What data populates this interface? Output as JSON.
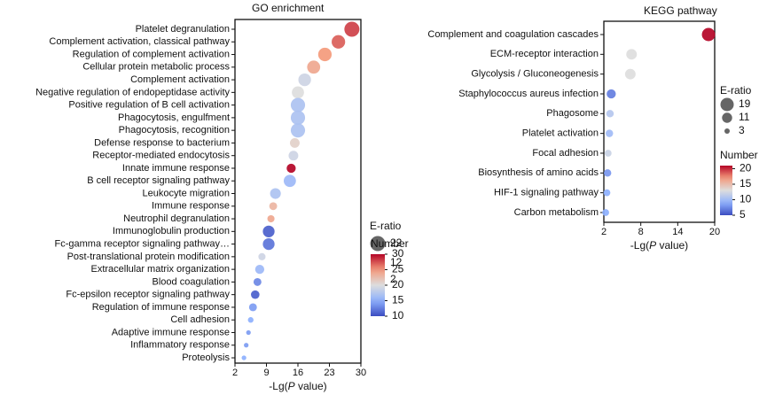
{
  "chart_data": [
    {
      "type": "scatter",
      "title": "GO enrichment",
      "xlabel_prefix": "-Lg(",
      "xlabel_italic": "P",
      "xlabel_suffix": " value)",
      "xlim": [
        2,
        30
      ],
      "xticks": [
        2,
        9,
        16,
        23,
        30
      ],
      "terms": [
        "Platelet degranulation",
        "Complement activation, classical pathway",
        "Regulation of complement activation",
        "Cellular protein metabolic process",
        "Complement activation",
        "Negative regulation of endopeptidase activity",
        "Positive regulation of B cell activation",
        "Phagocytosis, engulfment",
        "Phagocytosis, recognition",
        "Defense response to bacterium",
        "Receptor-mediated endocytosis",
        "Innate immune response",
        "B cell receptor signaling pathway",
        "Leukocyte migration",
        "Immune response",
        "Neutrophil degranulation",
        "Immunoglobulin production",
        "Fc-gamma receptor signaling pathway…",
        "Post-translational protein modification",
        "Extracellular matrix organization",
        "Blood coagulation",
        "Fc-epsilon receptor signaling pathway",
        "Regulation of immune response",
        "Cell adhesion",
        "Adaptive immune response",
        "Inflammatory response",
        "Proteolysis"
      ],
      "x": [
        28.0,
        25.0,
        22.0,
        19.5,
        17.5,
        16.0,
        16.0,
        16.0,
        16.0,
        15.3,
        15.0,
        14.5,
        14.2,
        11.0,
        10.5,
        10.0,
        9.5,
        9.5,
        8.0,
        7.5,
        7.0,
        6.5,
        6.0,
        5.5,
        5.0,
        4.5,
        4.0
      ],
      "e_ratio": [
        22,
        18,
        18,
        17,
        16,
        15,
        20,
        20,
        20,
        10,
        10,
        9,
        15,
        12,
        7,
        6,
        14,
        14,
        6,
        9,
        7,
        8,
        7,
        4,
        3,
        3,
        3
      ],
      "number": [
        28,
        27,
        25,
        24,
        19,
        20,
        17,
        17,
        17,
        21,
        19,
        30,
        16,
        17,
        23,
        24,
        11,
        12,
        19,
        16,
        13,
        11,
        14,
        15,
        14,
        14,
        15
      ],
      "size_legend": {
        "title": "E-ratio",
        "values": [
          22,
          12,
          2
        ]
      },
      "color_legend": {
        "title": "Number",
        "min": 10,
        "max": 30,
        "ticks": [
          30,
          25,
          20,
          15,
          10
        ]
      }
    },
    {
      "type": "scatter",
      "title": "KEGG pathway",
      "xlabel_prefix": "-Lg(",
      "xlabel_italic": "P",
      "xlabel_suffix": " value)",
      "xlim": [
        2,
        20
      ],
      "xticks": [
        2,
        8,
        14,
        20
      ],
      "terms": [
        "Complement and coagulation cascades",
        "ECM-receptor interaction",
        "Glycolysis / Gluconeogenesis",
        "Staphylococcus aureus infection",
        "Phagosome",
        "Platelet activation",
        "Focal adhesion",
        "Biosynthesis of amino acids",
        "HIF-1 signaling pathway",
        "Carbon metabolism"
      ],
      "x": [
        19.0,
        6.5,
        6.3,
        3.2,
        3.0,
        2.9,
        2.7,
        2.6,
        2.5,
        2.3
      ],
      "e_ratio": [
        19,
        12,
        12,
        9,
        6,
        6,
        5,
        6,
        5,
        5
      ],
      "number": [
        21,
        13,
        13,
        7,
        11,
        10,
        12,
        8,
        9,
        9
      ],
      "size_legend": {
        "title": "E-ratio",
        "values": [
          19,
          11,
          3
        ]
      },
      "color_legend": {
        "title": "Number",
        "min": 5,
        "max": 21,
        "ticks": [
          20,
          15,
          10,
          5
        ]
      }
    }
  ]
}
